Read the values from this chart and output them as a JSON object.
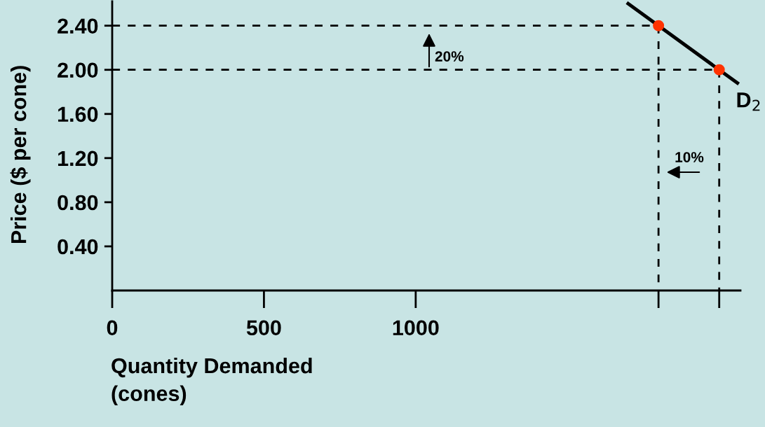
{
  "chart_data": {
    "type": "line",
    "xlabel": "Quantity Demanded\n(cones)",
    "ylabel": "Price ($ per cone)",
    "xlim": [
      0,
      2070
    ],
    "ylim": [
      0,
      2.62
    ],
    "xticks": [
      0,
      500,
      1000,
      {
        "value": 1800,
        "label": null
      },
      {
        "value": 2000,
        "label": null
      }
    ],
    "yticks": [
      {
        "value": 0.4,
        "label": "0.40"
      },
      {
        "value": 0.8,
        "label": "0.80"
      },
      {
        "value": 1.2,
        "label": "1.20"
      },
      {
        "value": 1.6,
        "label": "1.60"
      },
      {
        "value": 2.0,
        "label": "2.00"
      },
      {
        "value": 2.4,
        "label": "2.40"
      }
    ],
    "series": [
      {
        "x": [
          0,
          1800
        ],
        "values": [
          2.4,
          2.4
        ],
        "color": "#000000",
        "line_style": "dashed"
      },
      {
        "x": [
          0,
          2000
        ],
        "values": [
          2.0,
          2.0
        ],
        "color": "#000000",
        "line_style": "dashed"
      },
      {
        "x": [
          1800,
          1800
        ],
        "values": [
          2.4,
          0
        ],
        "color": "#000000",
        "line_style": "dashed"
      },
      {
        "x": [
          2000,
          2000
        ],
        "values": [
          2.0,
          0
        ],
        "color": "#000000",
        "line_style": "dashed"
      },
      {
        "name": "D$_{2}$",
        "x": [
          1700,
          2060
        ],
        "values": [
          2.6,
          1.88
        ],
        "color": "#000000",
        "line_style": "solid"
      },
      {
        "type": "scatter",
        "x": [
          1800,
          2000
        ],
        "values": [
          2.4,
          2.0
        ],
        "color": "#ff3300",
        "marker": "circle"
      }
    ],
    "annotations": [
      "20%",
      "10%"
    ],
    "grid": false,
    "legend": false
  }
}
